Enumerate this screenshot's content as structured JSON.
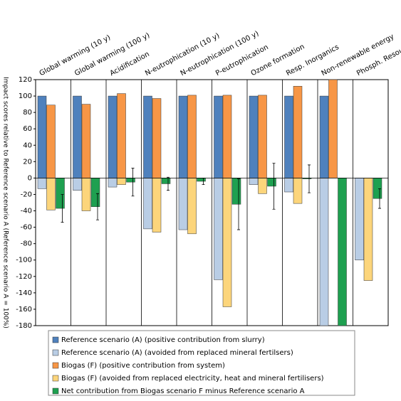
{
  "chart_data": {
    "type": "bar",
    "y_label": "Impact scores relative to Reference scenario A (Reference scenario A = 100%)",
    "categories": [
      "Global warming (10 y)",
      "Global warming (100 y)",
      "Acidification",
      "N-eutrophication (10 y)",
      "N-eutrophication (100 y)",
      "P-eutrophication",
      "Ozone formation",
      "Resp. Inorganics",
      "Non-renewable energy",
      "Phosph. Resources"
    ],
    "series": [
      {
        "name": "Reference scenario (A)  (positive contribution from slurry)",
        "color": "#4f81bd",
        "values": [
          100,
          100,
          100,
          100,
          100,
          100,
          100,
          100,
          100,
          null
        ]
      },
      {
        "name": "Reference scenario (A)  (avoided from replaced mineral fertilsers)",
        "color": "#b9cde5",
        "values": [
          -13,
          -15,
          -11,
          -62,
          -63,
          -124,
          -8,
          -17,
          -180,
          -100
        ]
      },
      {
        "name": "Biogas (F)  (positive contribution from system)",
        "color": "#f79646",
        "values": [
          89,
          90,
          103,
          97,
          101,
          101,
          101,
          112,
          120,
          null
        ]
      },
      {
        "name": "Biogas (F) (avoided from replaced electricity, heat and mineral fertilisers)",
        "color": "#fcd57b",
        "values": [
          -39,
          -40,
          -8,
          -66,
          -68,
          -157,
          -19,
          -31,
          null,
          -125
        ]
      },
      {
        "name": "Net contribution from Biogas scenario F minus Reference scenario A",
        "color": "#1ea050",
        "values": [
          -37,
          -35,
          -5,
          -7,
          -4,
          -32,
          -10,
          -1,
          -180,
          -25
        ],
        "errors": [
          17,
          16,
          17,
          8,
          4,
          31,
          28,
          17,
          null,
          12
        ]
      }
    ],
    "ylim": [
      -180,
      120
    ],
    "yticks": [
      -180,
      -160,
      -140,
      -120,
      -100,
      -80,
      -60,
      -40,
      -20,
      0,
      20,
      40,
      60,
      80,
      100,
      120
    ]
  }
}
